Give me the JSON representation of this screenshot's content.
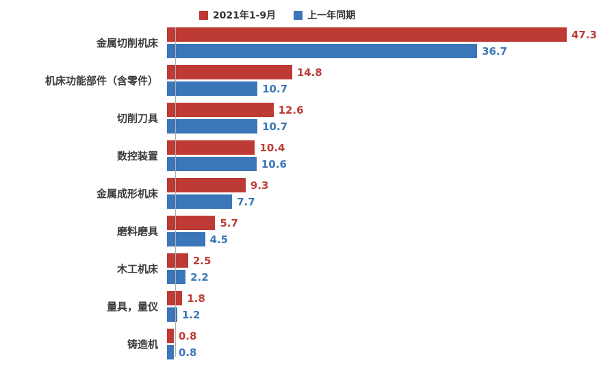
{
  "chart_data": {
    "type": "bar",
    "orientation": "horizontal",
    "title": "",
    "xlabel": "",
    "ylabel": "",
    "xlim": [
      0,
      50
    ],
    "grid": false,
    "legend_position": "top",
    "value_labels": true,
    "categories": [
      "金属切削机床",
      "机床功能部件（含零件）",
      "切削刀具",
      "数控装置",
      "金属成形机床",
      "磨料磨具",
      "木工机床",
      "量具，量仪",
      "铸造机"
    ],
    "series": [
      {
        "name": "2021年1-9月",
        "color": "#be3a34",
        "values": [
          47.3,
          14.8,
          12.6,
          10.4,
          9.3,
          5.7,
          2.5,
          1.8,
          0.8
        ]
      },
      {
        "name": "上一年同期",
        "color": "#3a76b8",
        "values": [
          36.7,
          10.7,
          10.7,
          10.6,
          7.7,
          4.5,
          2.2,
          1.2,
          0.8
        ]
      }
    ]
  },
  "legend": {
    "items": [
      {
        "label": "2021年1-9月",
        "color": "#be3a34"
      },
      {
        "label": "上一年同期",
        "color": "#3a76b8"
      }
    ]
  },
  "colors": {
    "axis_line": "#aeaeae",
    "label_text": "#3b3b3b",
    "background": "#ffffff"
  }
}
